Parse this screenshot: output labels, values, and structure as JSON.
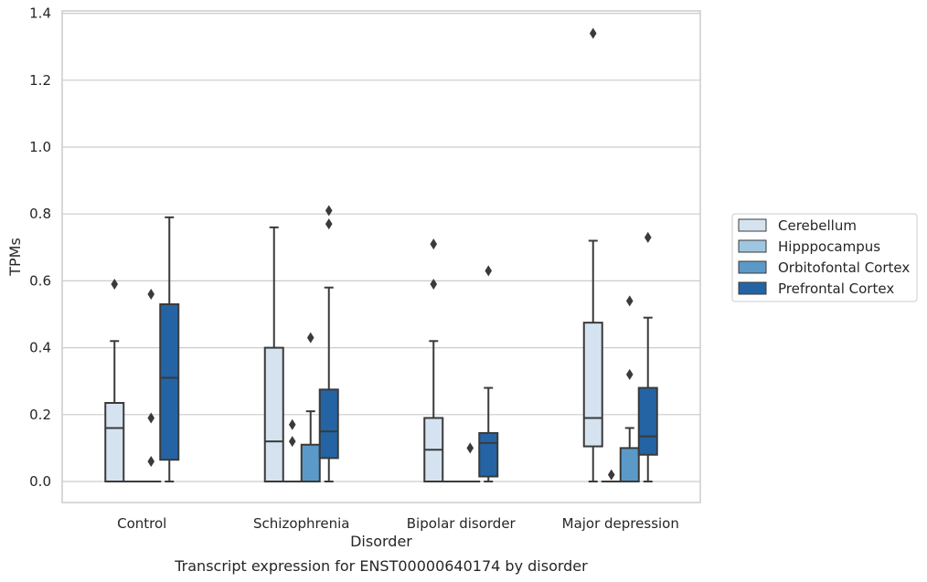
{
  "chart_data": {
    "type": "box",
    "caption": "Transcript expression for ENST00000640174 by disorder",
    "xlabel": "Disorder",
    "ylabel": "TPMs",
    "ylim": [
      -0.06,
      1.41
    ],
    "yticks": [
      "0.0",
      "0.2",
      "0.4",
      "0.6",
      "0.8",
      "1.0",
      "1.2",
      "1.4"
    ],
    "categories": [
      "Control",
      "Schizophrenia",
      "Bipolar disorder",
      "Major depression"
    ],
    "grid": true,
    "legend_position": "right",
    "series": [
      {
        "name": "Cerebellum",
        "color": "#d5e3f1",
        "boxes": [
          {
            "category": "Control",
            "q1": 0.0,
            "median": 0.16,
            "q3": 0.235,
            "whisker_low": 0.0,
            "whisker_high": 0.42,
            "outliers": [
              0.59
            ]
          },
          {
            "category": "Schizophrenia",
            "q1": 0.0,
            "median": 0.12,
            "q3": 0.4,
            "whisker_low": 0.0,
            "whisker_high": 0.76,
            "outliers": []
          },
          {
            "category": "Bipolar disorder",
            "q1": 0.0,
            "median": 0.095,
            "q3": 0.19,
            "whisker_low": 0.0,
            "whisker_high": 0.42,
            "outliers": [
              0.59,
              0.71
            ]
          },
          {
            "category": "Major depression",
            "q1": 0.105,
            "median": 0.19,
            "q3": 0.475,
            "whisker_low": 0.0,
            "whisker_high": 0.72,
            "outliers": [
              1.34
            ]
          }
        ]
      },
      {
        "name": "Hipppocampus",
        "color": "#9ec6e0",
        "boxes": [
          {
            "category": "Control",
            "q1": 0.0,
            "median": 0.0,
            "q3": 0.0,
            "whisker_low": 0.0,
            "whisker_high": 0.0,
            "outliers": []
          },
          {
            "category": "Schizophrenia",
            "q1": 0.0,
            "median": 0.0,
            "q3": 0.0,
            "whisker_low": 0.0,
            "whisker_high": 0.0,
            "outliers": [
              0.12,
              0.17
            ]
          },
          {
            "category": "Bipolar disorder",
            "q1": 0.0,
            "median": 0.0,
            "q3": 0.0,
            "whisker_low": 0.0,
            "whisker_high": 0.0,
            "outliers": []
          },
          {
            "category": "Major depression",
            "q1": 0.0,
            "median": 0.0,
            "q3": 0.0,
            "whisker_low": 0.0,
            "whisker_high": 0.0,
            "outliers": [
              0.02
            ]
          }
        ]
      },
      {
        "name": "Orbitofontal Cortex",
        "color": "#5b9ac8",
        "boxes": [
          {
            "category": "Control",
            "q1": 0.0,
            "median": 0.0,
            "q3": 0.0,
            "whisker_low": 0.0,
            "whisker_high": 0.0,
            "outliers": [
              0.06,
              0.19,
              0.56
            ]
          },
          {
            "category": "Schizophrenia",
            "q1": 0.0,
            "median": 0.0,
            "q3": 0.11,
            "whisker_low": 0.0,
            "whisker_high": 0.21,
            "outliers": [
              0.43
            ]
          },
          {
            "category": "Bipolar disorder",
            "q1": 0.0,
            "median": 0.0,
            "q3": 0.0,
            "whisker_low": 0.0,
            "whisker_high": 0.0,
            "outliers": [
              0.1
            ]
          },
          {
            "category": "Major depression",
            "q1": 0.0,
            "median": 0.0,
            "q3": 0.1,
            "whisker_low": 0.0,
            "whisker_high": 0.16,
            "outliers": [
              0.32,
              0.54
            ]
          }
        ]
      },
      {
        "name": "Prefrontal Cortex",
        "color": "#2464a4",
        "boxes": [
          {
            "category": "Control",
            "q1": 0.065,
            "median": 0.31,
            "q3": 0.53,
            "whisker_low": 0.0,
            "whisker_high": 0.79,
            "outliers": []
          },
          {
            "category": "Schizophrenia",
            "q1": 0.07,
            "median": 0.15,
            "q3": 0.275,
            "whisker_low": 0.0,
            "whisker_high": 0.58,
            "outliers": [
              0.77,
              0.81
            ]
          },
          {
            "category": "Bipolar disorder",
            "q1": 0.015,
            "median": 0.115,
            "q3": 0.145,
            "whisker_low": 0.0,
            "whisker_high": 0.28,
            "outliers": [
              0.63
            ]
          },
          {
            "category": "Major depression",
            "q1": 0.08,
            "median": 0.135,
            "q3": 0.28,
            "whisker_low": 0.0,
            "whisker_high": 0.49,
            "outliers": [
              0.73
            ]
          }
        ]
      }
    ]
  }
}
